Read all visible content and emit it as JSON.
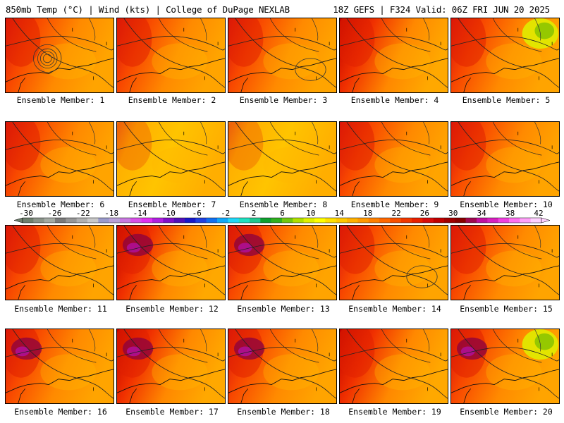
{
  "header": {
    "left": "850mb Temp (°C) | Wind (kts) | College of DuPage NEXLAB",
    "right": "18Z GEFS | F324 Valid: 06Z FRI JUN 20 2025"
  },
  "caption_prefix": "Ensemble Member:",
  "members": [
    {
      "label": "Ensemble Member: 1",
      "warm": "west-dark",
      "hot": false,
      "cool": false
    },
    {
      "label": "Ensemble Member: 2",
      "warm": "west-dark",
      "hot": false,
      "cool": false
    },
    {
      "label": "Ensemble Member: 3",
      "warm": "west-dark",
      "hot": false,
      "cool": false
    },
    {
      "label": "Ensemble Member: 4",
      "warm": "northwest-dark",
      "hot": false,
      "cool": false
    },
    {
      "label": "Ensemble Member: 5",
      "warm": "west-dark",
      "hot": false,
      "cool": true
    },
    {
      "label": "Ensemble Member: 6",
      "warm": "west-dark",
      "hot": false,
      "cool": false
    },
    {
      "label": "Ensemble Member: 7",
      "warm": "light",
      "hot": false,
      "cool": false
    },
    {
      "label": "Ensemble Member: 8",
      "warm": "light",
      "hot": false,
      "cool": false
    },
    {
      "label": "Ensemble Member: 9",
      "warm": "west-dark",
      "hot": false,
      "cool": false
    },
    {
      "label": "Ensemble Member: 10",
      "warm": "west-dark",
      "hot": false,
      "cool": false
    },
    {
      "label": "Ensemble Member: 11",
      "warm": "west-dark",
      "hot": false,
      "cool": false
    },
    {
      "label": "Ensemble Member: 12",
      "warm": "northwest-dark",
      "hot": true,
      "cool": false
    },
    {
      "label": "Ensemble Member: 13",
      "warm": "west-dark",
      "hot": true,
      "cool": false
    },
    {
      "label": "Ensemble Member: 14",
      "warm": "west-dark",
      "hot": false,
      "cool": false
    },
    {
      "label": "Ensemble Member: 15",
      "warm": "west-dark",
      "hot": false,
      "cool": false
    },
    {
      "label": "Ensemble Member: 16",
      "warm": "west-dark",
      "hot": true,
      "cool": false
    },
    {
      "label": "Ensemble Member: 17",
      "warm": "northwest-dark",
      "hot": true,
      "cool": false
    },
    {
      "label": "Ensemble Member: 18",
      "warm": "west-dark",
      "hot": true,
      "cool": false
    },
    {
      "label": "Ensemble Member: 19",
      "warm": "northwest-dark",
      "hot": false,
      "cool": false
    },
    {
      "label": "Ensemble Member: 20",
      "warm": "west-dark",
      "hot": true,
      "cool": true
    }
  ],
  "colorbar": {
    "labels": [
      "-30",
      "-26",
      "-22",
      "-18",
      "-14",
      "-10",
      "-6",
      "-2",
      "2",
      "6",
      "10",
      "14",
      "18",
      "22",
      "26",
      "30",
      "34",
      "38",
      "42"
    ],
    "colors": [
      "#6e7f6e",
      "#8a948a",
      "#a3aaa3",
      "#7a7a7a",
      "#969696",
      "#b0b0b0",
      "#c8c8c8",
      "#9a9acb",
      "#b8a0d8",
      "#c878e0",
      "#d850e8",
      "#e030f0",
      "#b020e0",
      "#8010c8",
      "#5010b8",
      "#1818c8",
      "#2040e0",
      "#1070f0",
      "#10a8f8",
      "#20d8f8",
      "#20e0c0",
      "#20c890",
      "#10a030",
      "#30b020",
      "#70c810",
      "#b0e000",
      "#e0f000",
      "#ffff00",
      "#ffe000",
      "#ffc800",
      "#ffb000",
      "#ff9800",
      "#ff8000",
      "#ff6800",
      "#f85000",
      "#f03800",
      "#e82000",
      "#d80c0c",
      "#c00000",
      "#a00000",
      "#880000",
      "#a00850",
      "#c010a0",
      "#d820c0",
      "#f040e0",
      "#ff70f0",
      "#ffa0f8",
      "#ffd0ff"
    ]
  }
}
